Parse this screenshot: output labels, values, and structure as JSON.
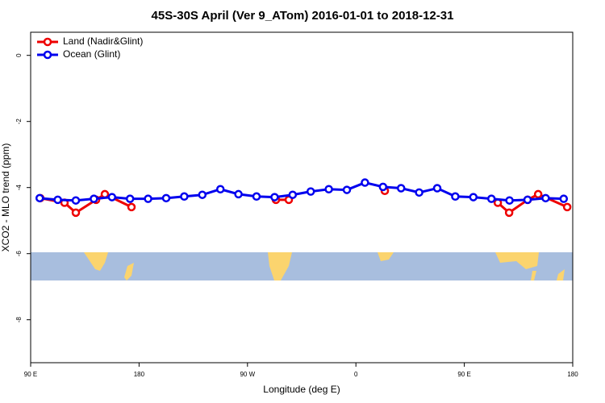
{
  "chart_data": {
    "type": "line",
    "title": "45S-30S April (Ver 9_ATom)   2016-01-01 to 2018-12-31",
    "xlabel": "Longitude (deg E)",
    "ylabel": "XCO2 - MLO trend (ppm)",
    "xlim": [
      90,
      540
    ],
    "ylim": [
      -9.3,
      0.7
    ],
    "xticks": [
      {
        "value": 90,
        "label": "90 E"
      },
      180,
      {
        "value": 270,
        "label": "90 W"
      },
      {
        "value": 360,
        "label": "0"
      },
      {
        "value": 450,
        "label": "90 E"
      },
      {
        "value": 540,
        "label": "180"
      }
    ],
    "yticks": [
      0,
      -2,
      -4,
      -6,
      -8
    ],
    "legend": "upper left",
    "series": [
      {
        "name": "Land (Nadir&Glint)",
        "color": "#ee0000",
        "x": [
          98,
          118.1,
          127.5,
          144.3,
          151.6,
          173.7,
          null,
          293.6,
          304.3,
          null,
          384.0,
          null,
          477.8,
          487.2,
          502.6,
          511.3,
          535.4
        ],
        "values": [
          -4.32,
          -4.46,
          -4.76,
          -4.37,
          -4.2,
          -4.59,
          null,
          -4.37,
          -4.37,
          null,
          -4.1,
          null,
          -4.46,
          -4.76,
          -4.37,
          -4.2,
          -4.59
        ]
      },
      {
        "name": "Ocean (Glint)",
        "color": "#0000ee",
        "x": [
          97.5,
          112.5,
          127.5,
          142.5,
          157.5,
          172.5,
          187.5,
          202.5,
          217.5,
          232.5,
          247.5,
          262.5,
          277.5,
          292.5,
          307.5,
          322.5,
          337.5,
          352.5,
          367.5,
          382.5,
          397.5,
          412.5,
          427.5,
          442.5,
          457.5,
          472.5,
          487.5,
          502.5,
          517.5,
          532.5
        ],
        "values": [
          -4.32,
          -4.37,
          -4.39,
          -4.34,
          -4.29,
          -4.34,
          -4.34,
          -4.32,
          -4.27,
          -4.22,
          -4.05,
          -4.2,
          -4.27,
          -4.29,
          -4.22,
          -4.12,
          -4.05,
          -4.07,
          -3.85,
          -3.98,
          -4.02,
          -4.15,
          -4.02,
          -4.27,
          -4.29,
          -4.34,
          -4.39,
          -4.37,
          -4.32,
          -4.34
        ]
      }
    ]
  }
}
